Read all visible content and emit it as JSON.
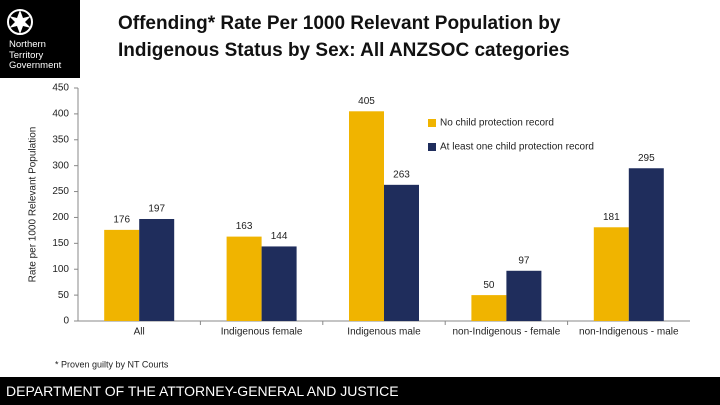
{
  "logo": {
    "lines": [
      "Northern",
      "Territory",
      "Government"
    ]
  },
  "chart_data": {
    "type": "bar",
    "title": "Offending* Rate Per 1000 Relevant Population by Indigenous Status by Sex: All ANZSOC categories",
    "y_label": "Rate per 1000 Relevant Population",
    "categories": [
      "All",
      "Indigenous female",
      "Indigenous male",
      "non-Indigenous - female",
      "non-Indigenous - male"
    ],
    "series": [
      {
        "name": "No child protection record",
        "color": "#f0b400",
        "values": [
          176,
          163,
          405,
          50,
          181
        ]
      },
      {
        "name": "At least one child protection record",
        "color": "#1f2d5c",
        "values": [
          197,
          144,
          263,
          97,
          295
        ]
      }
    ],
    "ylim": [
      0,
      450
    ],
    "yticks": [
      0,
      50,
      100,
      150,
      200,
      250,
      300,
      350,
      400,
      450
    ],
    "grid": false,
    "data_labels": true,
    "note": "* Proven guilty by NT Courts"
  },
  "footer": "DEPARTMENT OF THE ATTORNEY-GENERAL AND JUSTICE"
}
